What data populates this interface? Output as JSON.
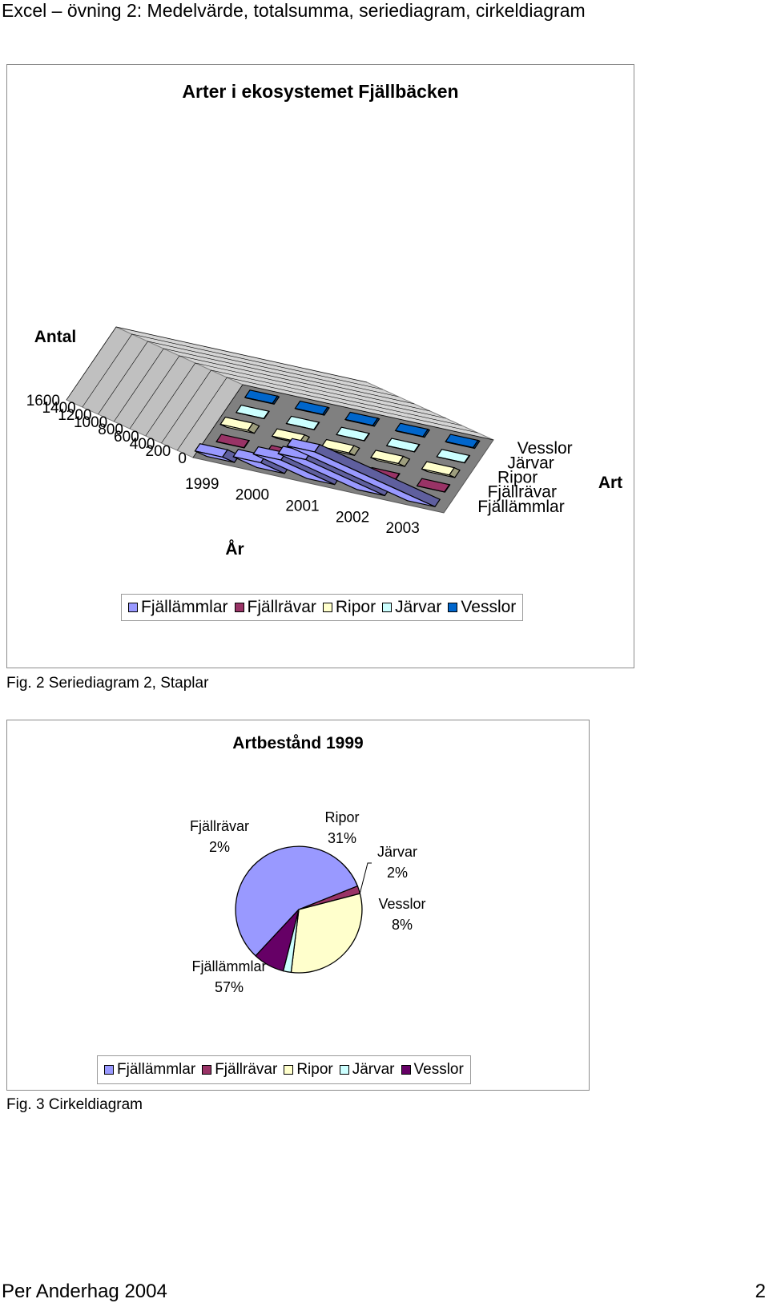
{
  "header": {
    "title": "Excel – övning 2: Medelvärde, totalsumma, seriediagram, cirkeldiagram"
  },
  "chart1": {
    "caption": "Fig. 2 Seriediagram 2, Staplar",
    "chart_data": {
      "type": "bar",
      "variant": "3d-clustered-column",
      "title": "Arter i ekosystemet Fjällbäcken",
      "ylabel": "Antal",
      "xlabel": "År",
      "zlabel": "Art",
      "ylim": [
        0,
        1600
      ],
      "yticks": [
        "0",
        "200",
        "400",
        "600",
        "800",
        "1000",
        "1200",
        "1400",
        "1600"
      ],
      "categories": [
        "1999",
        "2000",
        "2001",
        "2002",
        "2003"
      ],
      "series": [
        {
          "name": "Fjällämmlar",
          "color": "#9999ff",
          "values": [
            150,
            300,
            680,
            1000,
            1520
          ]
        },
        {
          "name": "Fjällrävar",
          "color": "#993366",
          "values": [
            5,
            5,
            5,
            5,
            5
          ]
        },
        {
          "name": "Ripor",
          "color": "#ffffcc",
          "values": [
            80,
            60,
            70,
            80,
            70
          ]
        },
        {
          "name": "Järvar",
          "color": "#ccffff",
          "values": [
            5,
            5,
            5,
            5,
            5
          ]
        },
        {
          "name": "Vesslor",
          "color": "#0066cc",
          "values": [
            20,
            20,
            20,
            20,
            20
          ]
        }
      ],
      "legend_position": "bottom",
      "grid": true
    }
  },
  "chart2": {
    "caption": "Fig. 3 Cirkeldiagram",
    "chart_data": {
      "type": "pie",
      "title": "Artbestånd 1999",
      "slices": [
        {
          "name": "Fjällämmlar",
          "pct": "57%",
          "value": 57,
          "color": "#9999ff"
        },
        {
          "name": "Fjällrävar",
          "pct": "2%",
          "value": 2,
          "color": "#993366"
        },
        {
          "name": "Ripor",
          "pct": "31%",
          "value": 31,
          "color": "#ffffcc"
        },
        {
          "name": "Järvar",
          "pct": "2%",
          "value": 2,
          "color": "#ccffff"
        },
        {
          "name": "Vesslor",
          "pct": "8%",
          "value": 8,
          "color": "#660066"
        }
      ],
      "legend_position": "bottom"
    }
  },
  "footer": {
    "author": "Per Anderhag 2004",
    "page": "2"
  }
}
